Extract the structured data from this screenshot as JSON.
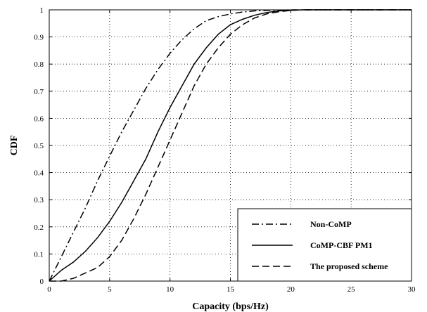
{
  "chart_data": {
    "type": "line",
    "xlabel": "Capacity (bps/Hz)",
    "ylabel": "CDF",
    "xlim": [
      0,
      30
    ],
    "ylim": [
      0,
      1
    ],
    "xticks": [
      "0",
      "5",
      "10",
      "15",
      "20",
      "25",
      "30"
    ],
    "yticks": [
      "0",
      "0.1",
      "0.2",
      "0.3",
      "0.4",
      "0.5",
      "0.6",
      "0.7",
      "0.8",
      "0.9",
      "1"
    ],
    "grid": true,
    "legend_position": "bottom-right",
    "series": [
      {
        "name": "Non-CoMP",
        "style": "dashdot",
        "color": "#000000",
        "x": [
          0,
          1,
          2,
          3,
          4,
          5,
          6,
          7,
          8,
          9,
          10,
          11,
          12,
          13,
          14,
          15,
          16,
          17,
          18,
          19,
          20,
          21,
          22,
          30
        ],
        "y": [
          0,
          0.09,
          0.18,
          0.27,
          0.37,
          0.46,
          0.55,
          0.63,
          0.71,
          0.78,
          0.84,
          0.89,
          0.93,
          0.96,
          0.975,
          0.985,
          0.992,
          0.996,
          0.998,
          0.999,
          1.0,
          1.0,
          1.0,
          1.0
        ]
      },
      {
        "name": "CoMP-CBF PM1",
        "style": "solid",
        "color": "#000000",
        "x": [
          0,
          1,
          2,
          3,
          4,
          5,
          6,
          7,
          8,
          9,
          10,
          11,
          12,
          13,
          14,
          15,
          16,
          17,
          18,
          19,
          20,
          21,
          22,
          30
        ],
        "y": [
          0,
          0.04,
          0.07,
          0.11,
          0.16,
          0.22,
          0.29,
          0.37,
          0.45,
          0.55,
          0.64,
          0.72,
          0.8,
          0.86,
          0.91,
          0.945,
          0.965,
          0.98,
          0.99,
          0.996,
          0.998,
          1.0,
          1.0,
          1.0
        ]
      },
      {
        "name": "The proposed scheme",
        "style": "dashed",
        "color": "#000000",
        "x": [
          0,
          1,
          2,
          3,
          4,
          5,
          6,
          7,
          8,
          9,
          10,
          11,
          12,
          13,
          14,
          15,
          16,
          17,
          18,
          19,
          20,
          21,
          22,
          30
        ],
        "y": [
          0,
          0.0,
          0.01,
          0.03,
          0.05,
          0.09,
          0.15,
          0.23,
          0.32,
          0.42,
          0.52,
          0.62,
          0.72,
          0.8,
          0.86,
          0.91,
          0.945,
          0.97,
          0.985,
          0.993,
          0.998,
          1.0,
          1.0,
          1.0
        ]
      }
    ]
  }
}
